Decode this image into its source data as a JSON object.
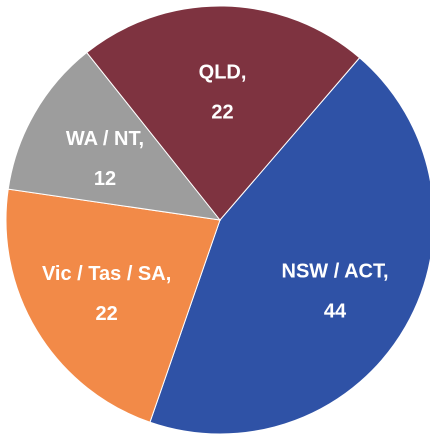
{
  "chart_data": {
    "type": "pie",
    "categories": [
      "NSW / ACT,",
      "Vic / Tas / SA,",
      "WA / NT,",
      "QLD,"
    ],
    "values": [
      44,
      22,
      12,
      22
    ],
    "colors": [
      "#2f52a6",
      "#f28a48",
      "#9d9d9d",
      "#7e3340"
    ]
  }
}
